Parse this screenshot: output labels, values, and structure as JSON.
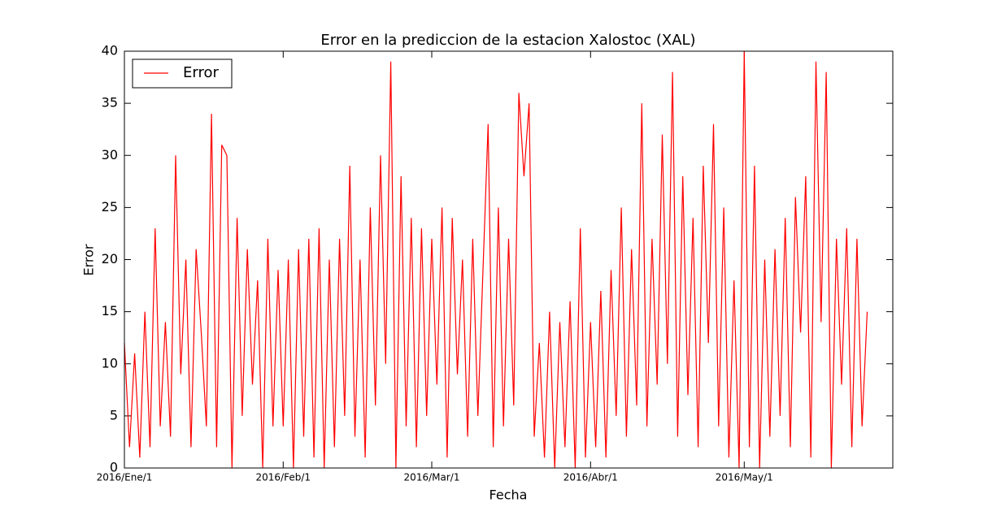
{
  "chart_data": {
    "type": "line",
    "title": "Error en la prediccion de la estacion Xalostoc (XAL)",
    "x_label": "Fecha",
    "y_label": "Error",
    "x": [
      0,
      1,
      2,
      3,
      4,
      5,
      6,
      7,
      8,
      9,
      10,
      11,
      12,
      13,
      14,
      15,
      16,
      17,
      18,
      19,
      20,
      21,
      22,
      23,
      24,
      25,
      26,
      27,
      28,
      29,
      30,
      31,
      32,
      33,
      34,
      35,
      36,
      37,
      38,
      39,
      40,
      41,
      42,
      43,
      44,
      45,
      46,
      47,
      48,
      49,
      50,
      51,
      52,
      53,
      54,
      55,
      56,
      57,
      58,
      59,
      60,
      61,
      62,
      63,
      64,
      65,
      66,
      67,
      68,
      69,
      70,
      71,
      72,
      73,
      74,
      75,
      76,
      77,
      78,
      79,
      80,
      81,
      82,
      83,
      84,
      85,
      86,
      87,
      88,
      89,
      90,
      91,
      92,
      93,
      94,
      95,
      96,
      97,
      98,
      99,
      100,
      101,
      102,
      103,
      104,
      105,
      106,
      107,
      108,
      109,
      110,
      111,
      112,
      113,
      114,
      115,
      116,
      117,
      118,
      119,
      120,
      121,
      122,
      123,
      124,
      125,
      126,
      127,
      128,
      129,
      130,
      131,
      132,
      133,
      134,
      135,
      136,
      137,
      138,
      139,
      140,
      141,
      142,
      143,
      144,
      145
    ],
    "series": [
      {
        "name": "Error",
        "color": "#ff0000",
        "values": [
          12,
          2,
          11,
          1,
          15,
          2,
          23,
          4,
          14,
          3,
          30,
          9,
          20,
          2,
          21,
          13,
          4,
          34,
          2,
          31,
          30,
          0,
          24,
          5,
          21,
          8,
          18,
          0,
          22,
          4,
          19,
          4,
          20,
          0,
          21,
          3,
          22,
          1,
          23,
          0,
          20,
          2,
          22,
          5,
          29,
          3,
          20,
          1,
          25,
          6,
          30,
          10,
          39,
          0,
          28,
          4,
          24,
          2,
          23,
          5,
          22,
          8,
          25,
          1,
          24,
          9,
          20,
          3,
          22,
          5,
          19,
          33,
          2,
          25,
          4,
          22,
          6,
          36,
          28,
          35,
          3,
          12,
          1,
          15,
          0,
          14,
          2,
          16,
          0,
          23,
          1,
          14,
          2,
          17,
          1,
          19,
          5,
          25,
          3,
          21,
          6,
          35,
          4,
          22,
          8,
          32,
          10,
          38,
          3,
          28,
          7,
          24,
          2,
          29,
          12,
          33,
          4,
          25,
          1,
          18,
          0,
          40,
          2,
          29,
          0,
          20,
          3,
          21,
          5,
          24,
          2,
          26,
          13,
          28,
          1,
          39,
          14,
          38,
          0,
          22,
          8,
          23,
          2,
          22,
          4,
          15
        ]
      }
    ],
    "xlim": [
      0,
      150
    ],
    "xticks": [
      {
        "value": 0,
        "label": "2016/Ene/1"
      },
      {
        "value": 31,
        "label": "2016/Feb/1"
      },
      {
        "value": 60,
        "label": "2016/Mar/1"
      },
      {
        "value": 91,
        "label": "2016/Abr/1"
      },
      {
        "value": 121,
        "label": "2016/May/1"
      }
    ],
    "ylim": [
      0,
      40
    ],
    "yticks": [
      0,
      5,
      10,
      15,
      20,
      25,
      30,
      35,
      40
    ],
    "grid": false,
    "legend": "upper-left"
  }
}
